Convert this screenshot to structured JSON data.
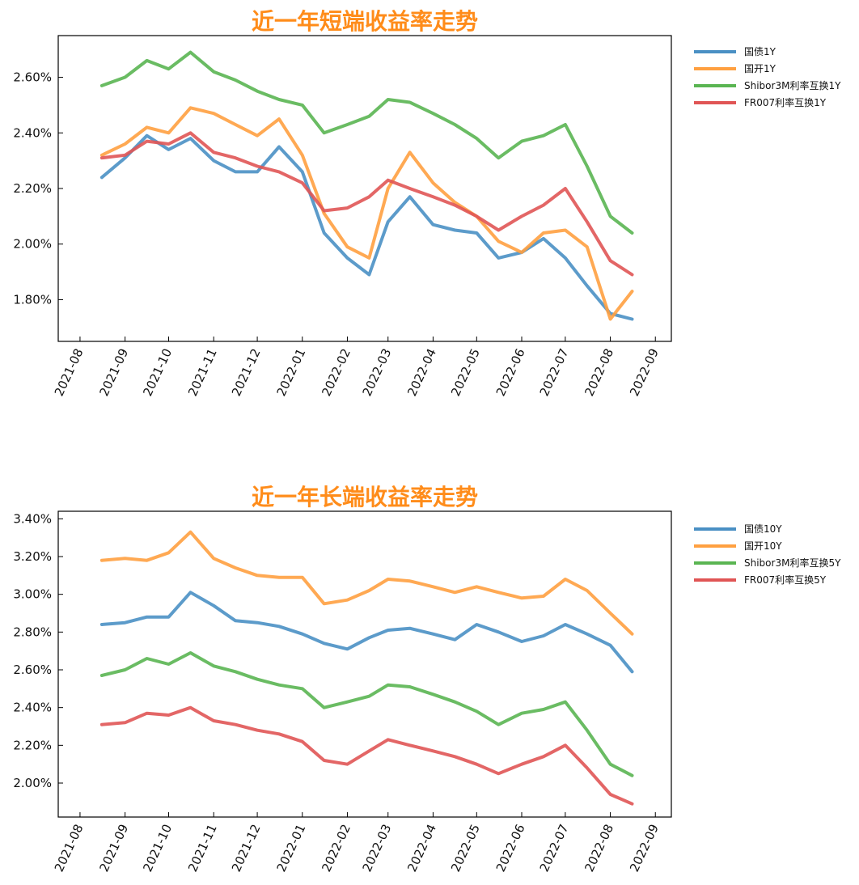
{
  "chart_data": [
    {
      "type": "line",
      "title": "近一年短端收益率走势",
      "x_ticks": [
        "2021-08",
        "2021-09",
        "2021-10",
        "2021-11",
        "2021-12",
        "2022-01",
        "2022-02",
        "2022-03",
        "2022-04",
        "2022-05",
        "2022-06",
        "2022-07",
        "2022-08",
        "2022-09"
      ],
      "y_ticks": [
        "1.80%",
        "2.00%",
        "2.20%",
        "2.40%",
        "2.60%"
      ],
      "ylim": [
        1.65,
        2.75
      ],
      "legend_placement": "outside right",
      "grid": false,
      "series": [
        {
          "name": "国债1Y",
          "color": "#4a90c4",
          "x": [
            "2021-08-16",
            "2021-09-01",
            "2021-09-16",
            "2021-10-01",
            "2021-10-16",
            "2021-11-01",
            "2021-11-16",
            "2021-12-01",
            "2021-12-16",
            "2022-01-01",
            "2022-01-16",
            "2022-02-01",
            "2022-02-16",
            "2022-03-01",
            "2022-03-16",
            "2022-04-01",
            "2022-04-16",
            "2022-05-01",
            "2022-05-16",
            "2022-06-01",
            "2022-06-16",
            "2022-07-01",
            "2022-07-16",
            "2022-08-01",
            "2022-08-16"
          ],
          "values": [
            2.24,
            2.31,
            2.39,
            2.34,
            2.38,
            2.3,
            2.26,
            2.26,
            2.35,
            2.26,
            2.04,
            1.95,
            1.89,
            2.08,
            2.17,
            2.07,
            2.05,
            2.04,
            1.95,
            1.97,
            2.02,
            1.95,
            1.85,
            1.75,
            1.73
          ]
        },
        {
          "name": "国开1Y",
          "color": "#ffa040",
          "x": [
            "2021-08-16",
            "2021-09-01",
            "2021-09-16",
            "2021-10-01",
            "2021-10-16",
            "2021-11-01",
            "2021-11-16",
            "2021-12-01",
            "2021-12-16",
            "2022-01-01",
            "2022-01-16",
            "2022-02-01",
            "2022-02-16",
            "2022-03-01",
            "2022-03-16",
            "2022-04-01",
            "2022-04-16",
            "2022-05-01",
            "2022-05-16",
            "2022-06-01",
            "2022-06-16",
            "2022-07-01",
            "2022-07-16",
            "2022-08-01",
            "2022-08-16"
          ],
          "values": [
            2.32,
            2.36,
            2.42,
            2.4,
            2.49,
            2.47,
            2.43,
            2.39,
            2.45,
            2.32,
            2.11,
            1.99,
            1.95,
            2.2,
            2.33,
            2.22,
            2.15,
            2.1,
            2.01,
            1.97,
            2.04,
            2.05,
            1.99,
            1.73,
            1.83
          ]
        },
        {
          "name": "Shibor3M利率互换1Y",
          "color": "#5ab552",
          "x": [
            "2021-08-16",
            "2021-09-01",
            "2021-09-16",
            "2021-10-01",
            "2021-10-16",
            "2021-11-01",
            "2021-11-16",
            "2021-12-01",
            "2021-12-16",
            "2022-01-01",
            "2022-01-16",
            "2022-02-01",
            "2022-02-16",
            "2022-03-01",
            "2022-03-16",
            "2022-04-01",
            "2022-04-16",
            "2022-05-01",
            "2022-05-16",
            "2022-06-01",
            "2022-06-16",
            "2022-07-01",
            "2022-07-16",
            "2022-08-01",
            "2022-08-16"
          ],
          "values": [
            2.57,
            2.6,
            2.66,
            2.63,
            2.69,
            2.62,
            2.59,
            2.55,
            2.52,
            2.5,
            2.4,
            2.43,
            2.46,
            2.52,
            2.51,
            2.47,
            2.43,
            2.38,
            2.31,
            2.37,
            2.39,
            2.43,
            2.28,
            2.1,
            2.04
          ]
        },
        {
          "name": "FR007利率互换1Y",
          "color": "#e05555",
          "x": [
            "2021-08-16",
            "2021-09-01",
            "2021-09-16",
            "2021-10-01",
            "2021-10-16",
            "2021-11-01",
            "2021-11-16",
            "2021-12-01",
            "2021-12-16",
            "2022-01-01",
            "2022-01-16",
            "2022-02-01",
            "2022-02-16",
            "2022-03-01",
            "2022-03-16",
            "2022-04-01",
            "2022-04-16",
            "2022-05-01",
            "2022-05-16",
            "2022-06-01",
            "2022-06-16",
            "2022-07-01",
            "2022-07-16",
            "2022-08-01",
            "2022-08-16"
          ],
          "values": [
            2.31,
            2.32,
            2.37,
            2.36,
            2.4,
            2.33,
            2.31,
            2.28,
            2.26,
            2.22,
            2.12,
            2.13,
            2.17,
            2.23,
            2.2,
            2.17,
            2.14,
            2.1,
            2.05,
            2.1,
            2.14,
            2.2,
            2.08,
            1.94,
            1.89
          ]
        }
      ]
    },
    {
      "type": "line",
      "title": "近一年长端收益率走势",
      "x_ticks": [
        "2021-08",
        "2021-09",
        "2021-10",
        "2021-11",
        "2021-12",
        "2022-01",
        "2022-02",
        "2022-03",
        "2022-04",
        "2022-05",
        "2022-06",
        "2022-07",
        "2022-08",
        "2022-09"
      ],
      "y_ticks": [
        "2.00%",
        "2.20%",
        "2.40%",
        "2.60%",
        "2.80%",
        "3.00%",
        "3.20%",
        "3.40%"
      ],
      "ylim": [
        1.82,
        3.44
      ],
      "legend_placement": "outside right",
      "grid": false,
      "series": [
        {
          "name": "国债10Y",
          "color": "#4a90c4",
          "x": [
            "2021-08-16",
            "2021-09-01",
            "2021-09-16",
            "2021-10-01",
            "2021-10-16",
            "2021-11-01",
            "2021-11-16",
            "2021-12-01",
            "2021-12-16",
            "2022-01-01",
            "2022-01-16",
            "2022-02-01",
            "2022-02-16",
            "2022-03-01",
            "2022-03-16",
            "2022-04-01",
            "2022-04-16",
            "2022-05-01",
            "2022-05-16",
            "2022-06-01",
            "2022-06-16",
            "2022-07-01",
            "2022-07-16",
            "2022-08-01",
            "2022-08-16"
          ],
          "values": [
            2.84,
            2.85,
            2.88,
            2.88,
            3.01,
            2.94,
            2.86,
            2.85,
            2.83,
            2.79,
            2.74,
            2.71,
            2.77,
            2.81,
            2.82,
            2.79,
            2.76,
            2.84,
            2.8,
            2.75,
            2.78,
            2.84,
            2.79,
            2.73,
            2.59
          ]
        },
        {
          "name": "国开10Y",
          "color": "#ffa040",
          "x": [
            "2021-08-16",
            "2021-09-01",
            "2021-09-16",
            "2021-10-01",
            "2021-10-16",
            "2021-11-01",
            "2021-11-16",
            "2021-12-01",
            "2021-12-16",
            "2022-01-01",
            "2022-01-16",
            "2022-02-01",
            "2022-02-16",
            "2022-03-01",
            "2022-03-16",
            "2022-04-01",
            "2022-04-16",
            "2022-05-01",
            "2022-05-16",
            "2022-06-01",
            "2022-06-16",
            "2022-07-01",
            "2022-07-16",
            "2022-08-01",
            "2022-08-16"
          ],
          "values": [
            3.18,
            3.19,
            3.18,
            3.22,
            3.33,
            3.19,
            3.14,
            3.1,
            3.09,
            3.09,
            2.95,
            2.97,
            3.02,
            3.08,
            3.07,
            3.04,
            3.01,
            3.04,
            3.01,
            2.98,
            2.99,
            3.08,
            3.02,
            2.9,
            2.79
          ]
        },
        {
          "name": "Shibor3M利率互换5Y",
          "color": "#5ab552",
          "x": [
            "2021-08-16",
            "2021-09-01",
            "2021-09-16",
            "2021-10-01",
            "2021-10-16",
            "2021-11-01",
            "2021-11-16",
            "2021-12-01",
            "2021-12-16",
            "2022-01-01",
            "2022-01-16",
            "2022-02-01",
            "2022-02-16",
            "2022-03-01",
            "2022-03-16",
            "2022-04-01",
            "2022-04-16",
            "2022-05-01",
            "2022-05-16",
            "2022-06-01",
            "2022-06-16",
            "2022-07-01",
            "2022-07-16",
            "2022-08-01",
            "2022-08-16"
          ],
          "values": [
            2.57,
            2.6,
            2.66,
            2.63,
            2.69,
            2.62,
            2.59,
            2.55,
            2.52,
            2.5,
            2.4,
            2.43,
            2.46,
            2.52,
            2.51,
            2.47,
            2.43,
            2.38,
            2.31,
            2.37,
            2.39,
            2.43,
            2.28,
            2.1,
            2.04
          ]
        },
        {
          "name": "FR007利率互换5Y",
          "color": "#e05555",
          "x": [
            "2021-08-16",
            "2021-09-01",
            "2021-09-16",
            "2021-10-01",
            "2021-10-16",
            "2021-11-01",
            "2021-11-16",
            "2021-12-01",
            "2021-12-16",
            "2022-01-01",
            "2022-01-16",
            "2022-02-01",
            "2022-02-16",
            "2022-03-01",
            "2022-03-16",
            "2022-04-01",
            "2022-04-16",
            "2022-05-01",
            "2022-05-16",
            "2022-06-01",
            "2022-06-16",
            "2022-07-01",
            "2022-07-16",
            "2022-08-01",
            "2022-08-16"
          ],
          "values": [
            2.31,
            2.32,
            2.37,
            2.36,
            2.4,
            2.33,
            2.31,
            2.28,
            2.26,
            2.22,
            2.12,
            2.1,
            2.17,
            2.23,
            2.2,
            2.17,
            2.14,
            2.1,
            2.05,
            2.1,
            2.14,
            2.2,
            2.08,
            1.94,
            1.89
          ]
        }
      ]
    }
  ]
}
